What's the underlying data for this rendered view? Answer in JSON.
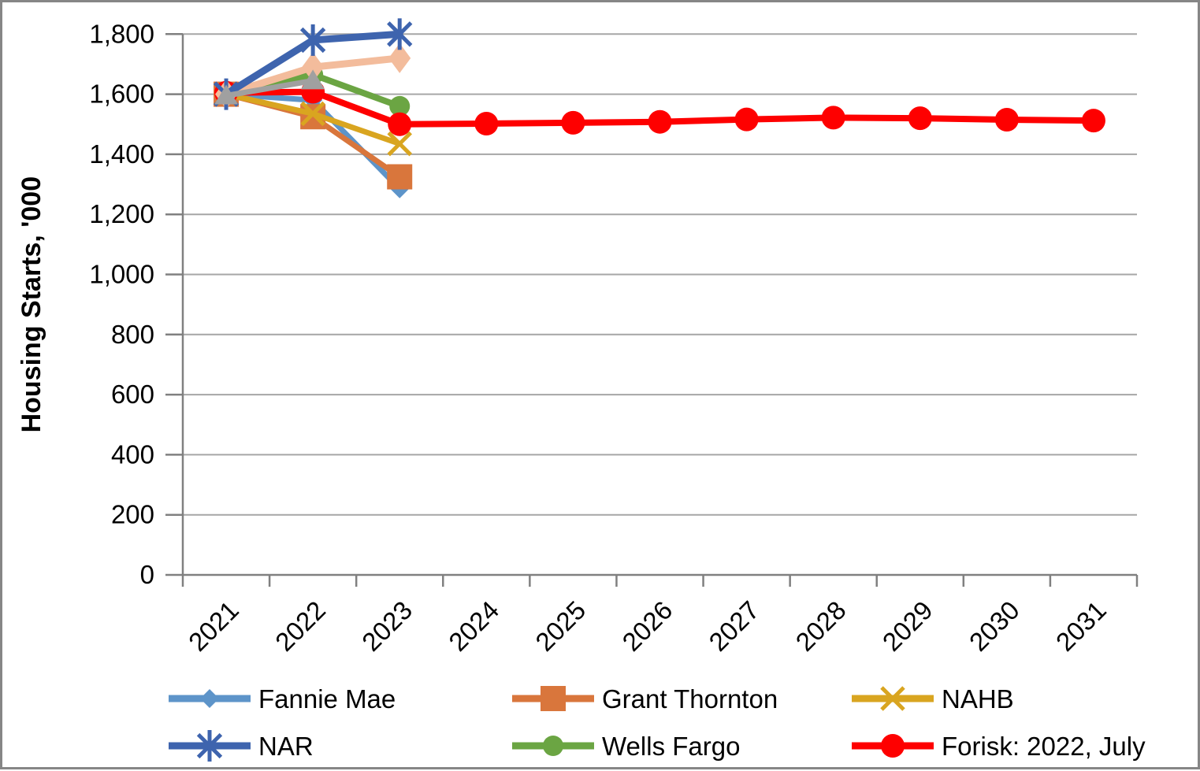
{
  "chart_data": {
    "type": "line",
    "title": "",
    "xlabel": "",
    "ylabel": "Housing Starts, '000",
    "categories": [
      "2021",
      "2022",
      "2023",
      "2024",
      "2025",
      "2026",
      "2027",
      "2028",
      "2029",
      "2030",
      "2031"
    ],
    "ylim": [
      0,
      1800
    ],
    "ytick_step": 200,
    "ytick_labels": [
      "0",
      "200",
      "400",
      "600",
      "800",
      "1,000",
      "1,200",
      "1,400",
      "1,600",
      "1,800"
    ],
    "grid": "horizontal",
    "legend_position": "bottom",
    "colors": {
      "gridline": "#A6A6A6",
      "axis": "#808080",
      "frame_border": "#868686",
      "text": "#000000"
    },
    "series": [
      {
        "key": "fannie_mae",
        "name": "Fannie Mae",
        "in_legend": true,
        "legend_slot": 0,
        "color": "#5D94C9",
        "marker": "diamond",
        "line_width": 7,
        "marker_size": 12,
        "values": [
          1600,
          1580,
          1285
        ]
      },
      {
        "key": "grant_thornton",
        "name": "Grant Thornton",
        "in_legend": true,
        "legend_slot": 1,
        "color": "#D9763C",
        "marker": "square",
        "line_width": 7,
        "marker_size": 16,
        "values": [
          1600,
          1525,
          1325
        ]
      },
      {
        "key": "nahb",
        "name": "NAHB",
        "in_legend": true,
        "legend_slot": 2,
        "color": "#D9A520",
        "marker": "x",
        "line_width": 7,
        "marker_size": 14,
        "values": [
          1600,
          1535,
          1435
        ]
      },
      {
        "key": "wells_fargo",
        "name": "Wells Fargo",
        "in_legend": true,
        "legend_slot": 4,
        "color": "#6BA543",
        "marker": "circle",
        "line_width": 8,
        "marker_size": 13,
        "values": [
          1600,
          1665,
          1560
        ]
      },
      {
        "key": "forisk_2022_july",
        "name": "Forisk: 2022, July",
        "in_legend": true,
        "legend_slot": 5,
        "color": "#FE0000",
        "marker": "circle",
        "line_width": 8,
        "marker_size": 15,
        "values": [
          1605,
          1608,
          1500,
          1502,
          1505,
          1508,
          1516,
          1522,
          1520,
          1515,
          1512
        ]
      },
      {
        "key": "unlabeled_salmon_diamond",
        "name": null,
        "in_legend": false,
        "legend_slot": null,
        "color": "#F3BC9C",
        "marker": "tall-diamond",
        "line_width": 9,
        "marker_size": 16,
        "values": [
          1600,
          1690,
          1720
        ]
      },
      {
        "key": "nar",
        "name": "NAR",
        "in_legend": true,
        "legend_slot": 3,
        "color": "#3E64AE",
        "marker": "asterisk",
        "line_width": 9,
        "marker_size": 20,
        "values": [
          1600,
          1780,
          1800
        ]
      },
      {
        "key": "unlabeled_gray_triangle",
        "name": null,
        "in_legend": false,
        "legend_slot": null,
        "color": "#A0A0A0",
        "marker": "triangle",
        "line_width": 7,
        "marker_size": 15,
        "values": [
          1595,
          1645
        ]
      }
    ]
  }
}
